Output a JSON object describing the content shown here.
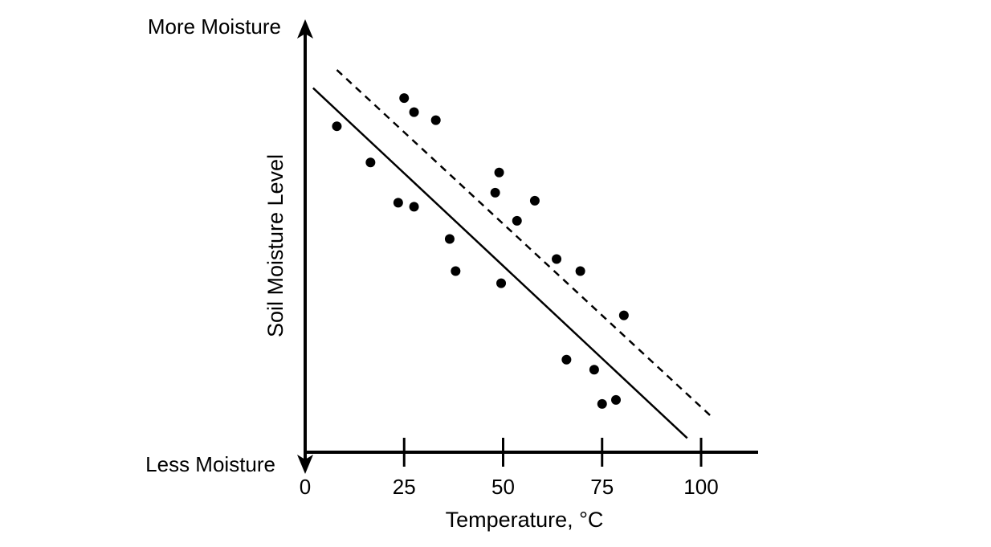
{
  "chart_data": {
    "type": "scatter",
    "title": "",
    "xlabel": "Temperature, °C",
    "ylabel": "Soil Moisture Level",
    "y_top_label": "More Moisture",
    "y_bottom_label": "Less Moisture",
    "xlim": [
      0,
      115
    ],
    "ylim": [
      0,
      100
    ],
    "x_ticks": [
      0,
      25,
      50,
      75,
      100
    ],
    "x_tick_labels": [
      "0",
      "25",
      "50",
      "75",
      "100"
    ],
    "y_ticks_shown": false,
    "grid": false,
    "legend": "none",
    "point_color": "#000000",
    "points": [
      {
        "x": 8,
        "y": 81
      },
      {
        "x": 16.5,
        "y": 72
      },
      {
        "x": 25,
        "y": 88
      },
      {
        "x": 27.5,
        "y": 84.5
      },
      {
        "x": 33,
        "y": 82.5
      },
      {
        "x": 23.5,
        "y": 62
      },
      {
        "x": 27.5,
        "y": 61
      },
      {
        "x": 36.5,
        "y": 53
      },
      {
        "x": 38,
        "y": 45
      },
      {
        "x": 49,
        "y": 69.5
      },
      {
        "x": 48,
        "y": 64.5
      },
      {
        "x": 53.5,
        "y": 57.5
      },
      {
        "x": 58,
        "y": 62.5
      },
      {
        "x": 49.5,
        "y": 42
      },
      {
        "x": 63.5,
        "y": 48
      },
      {
        "x": 69.5,
        "y": 45
      },
      {
        "x": 80.5,
        "y": 34
      },
      {
        "x": 66,
        "y": 23
      },
      {
        "x": 73,
        "y": 20.5
      },
      {
        "x": 78.5,
        "y": 13
      },
      {
        "x": 75,
        "y": 12
      }
    ],
    "lines": [
      {
        "style": "solid",
        "x": [
          2,
          96.5
        ],
        "y": [
          90.5,
          3.5
        ]
      },
      {
        "style": "dashed",
        "x": [
          8,
          103
        ],
        "y": [
          95,
          8.5
        ]
      }
    ]
  }
}
